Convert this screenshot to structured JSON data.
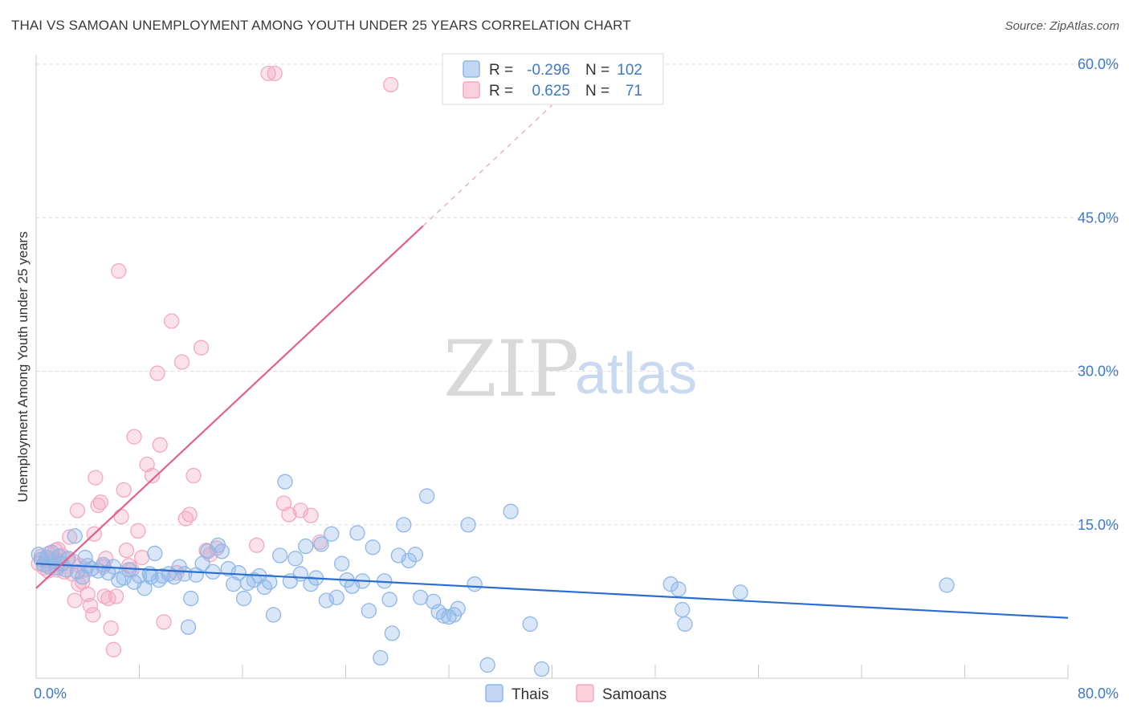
{
  "title": "THAI VS SAMOAN UNEMPLOYMENT AMONG YOUTH UNDER 25 YEARS CORRELATION CHART",
  "source": "Source: ZipAtlas.com",
  "watermark": {
    "zip": "ZIP",
    "atlas": "atlas"
  },
  "colors": {
    "thai": "#8fb7e8",
    "thai_line": "#2a6fcf",
    "samoan": "#f3a8c0",
    "samoan_line": "#e06090",
    "axis_text": "#3f78c8",
    "grid": "#dcdcdc"
  },
  "legend": {
    "rows": [
      {
        "r_label": "R =",
        "r_value": "-0.296",
        "n_label": "N =",
        "n_value": "102"
      },
      {
        "r_label": "R =",
        "r_value": "0.625",
        "n_label": "N =",
        "n_value": "71"
      }
    ]
  },
  "chart_data": {
    "type": "scatter",
    "title": "THAI VS SAMOAN UNEMPLOYMENT AMONG YOUTH UNDER 25 YEARS CORRELATION CHART",
    "xlabel": "",
    "ylabel": "Unemployment Among Youth under 25 years",
    "xlim": [
      0,
      80
    ],
    "ylim": [
      0,
      60
    ],
    "x_tick_labels": [
      "0.0%",
      "80.0%"
    ],
    "y_ticks": [
      15,
      30,
      45,
      60
    ],
    "y_tick_labels": [
      "15.0%",
      "30.0%",
      "45.0%",
      "60.0%"
    ],
    "series": [
      {
        "name": "Thais",
        "R": -0.296,
        "N": 102,
        "trend": {
          "x0": 0,
          "y0": 11.2,
          "x1": 80,
          "y1": 5.9
        },
        "points": [
          [
            0.2,
            12.1
          ],
          [
            0.4,
            11.6
          ],
          [
            0.6,
            11.1
          ],
          [
            0.8,
            11.8
          ],
          [
            1.0,
            10.9
          ],
          [
            1.2,
            12.3
          ],
          [
            1.4,
            11.4
          ],
          [
            1.6,
            10.8
          ],
          [
            1.8,
            11.9
          ],
          [
            2.0,
            11.2
          ],
          [
            2.3,
            10.6
          ],
          [
            2.5,
            11.7
          ],
          [
            3.0,
            13.9
          ],
          [
            3.2,
            10.4
          ],
          [
            3.6,
            9.9
          ],
          [
            4.0,
            11.0
          ],
          [
            4.3,
            10.7
          ],
          [
            4.8,
            10.5
          ],
          [
            5.2,
            11.1
          ],
          [
            5.6,
            10.3
          ],
          [
            6.0,
            10.9
          ],
          [
            6.4,
            9.6
          ],
          [
            6.8,
            9.8
          ],
          [
            7.2,
            10.6
          ],
          [
            7.6,
            9.4
          ],
          [
            8.0,
            10.0
          ],
          [
            8.4,
            8.8
          ],
          [
            8.8,
            10.2
          ],
          [
            9.2,
            12.2
          ],
          [
            9.5,
            9.6
          ],
          [
            9.8,
            10.0
          ],
          [
            10.3,
            10.2
          ],
          [
            10.7,
            9.9
          ],
          [
            11.1,
            10.9
          ],
          [
            11.5,
            10.2
          ],
          [
            11.8,
            5.0
          ],
          [
            12.0,
            7.8
          ],
          [
            12.4,
            10.1
          ],
          [
            12.9,
            11.2
          ],
          [
            13.3,
            12.4
          ],
          [
            13.7,
            10.4
          ],
          [
            14.1,
            13.0
          ],
          [
            14.4,
            12.4
          ],
          [
            14.9,
            10.7
          ],
          [
            15.3,
            9.2
          ],
          [
            15.7,
            10.3
          ],
          [
            16.1,
            7.8
          ],
          [
            16.4,
            9.3
          ],
          [
            16.9,
            9.6
          ],
          [
            17.3,
            10.0
          ],
          [
            17.7,
            8.9
          ],
          [
            18.1,
            9.4
          ],
          [
            18.4,
            6.2
          ],
          [
            18.9,
            12.0
          ],
          [
            19.3,
            19.2
          ],
          [
            19.7,
            9.5
          ],
          [
            20.1,
            11.7
          ],
          [
            20.5,
            10.2
          ],
          [
            20.9,
            12.9
          ],
          [
            21.3,
            9.2
          ],
          [
            21.7,
            9.8
          ],
          [
            22.1,
            13.1
          ],
          [
            22.5,
            7.6
          ],
          [
            22.9,
            14.1
          ],
          [
            23.3,
            7.9
          ],
          [
            23.7,
            11.2
          ],
          [
            24.1,
            9.6
          ],
          [
            24.5,
            9.0
          ],
          [
            24.9,
            14.2
          ],
          [
            25.3,
            9.5
          ],
          [
            25.8,
            6.6
          ],
          [
            26.1,
            12.8
          ],
          [
            26.7,
            2.0
          ],
          [
            27.0,
            9.5
          ],
          [
            27.4,
            7.7
          ],
          [
            27.6,
            4.4
          ],
          [
            28.1,
            12.0
          ],
          [
            28.5,
            15.0
          ],
          [
            28.9,
            11.5
          ],
          [
            29.4,
            12.1
          ],
          [
            29.8,
            7.9
          ],
          [
            30.3,
            17.8
          ],
          [
            30.8,
            7.5
          ],
          [
            31.2,
            6.5
          ],
          [
            31.6,
            6.1
          ],
          [
            32.0,
            6.0
          ],
          [
            32.4,
            6.2
          ],
          [
            32.7,
            6.8
          ],
          [
            33.5,
            15.0
          ],
          [
            34.0,
            9.2
          ],
          [
            35.0,
            1.3
          ],
          [
            36.8,
            16.3
          ],
          [
            38.3,
            5.3
          ],
          [
            39.2,
            0.9
          ],
          [
            49.2,
            9.2
          ],
          [
            49.8,
            8.7
          ],
          [
            50.1,
            6.7
          ],
          [
            50.3,
            5.3
          ],
          [
            54.6,
            8.4
          ],
          [
            70.6,
            9.1
          ],
          [
            8.9,
            9.9
          ],
          [
            3.8,
            11.8
          ]
        ]
      },
      {
        "name": "Samoans",
        "R": 0.625,
        "N": 71,
        "trend": {
          "x0": 0,
          "y0": 8.8,
          "x1": 30,
          "y1": 44.2
        },
        "trend_dashed": {
          "x0": 30,
          "y0": 44.2,
          "x1": 40,
          "y1": 56.0
        },
        "points": [
          [
            0.2,
            11.2
          ],
          [
            0.4,
            11.9
          ],
          [
            0.6,
            10.8
          ],
          [
            0.8,
            11.5
          ],
          [
            1.0,
            12.2
          ],
          [
            1.2,
            11.0
          ],
          [
            1.4,
            11.7
          ],
          [
            1.6,
            10.6
          ],
          [
            1.8,
            11.3
          ],
          [
            2.0,
            12.0
          ],
          [
            2.2,
            10.4
          ],
          [
            2.4,
            11.6
          ],
          [
            2.6,
            13.8
          ],
          [
            2.8,
            10.2
          ],
          [
            3.0,
            7.6
          ],
          [
            3.2,
            16.4
          ],
          [
            3.4,
            11.0
          ],
          [
            3.6,
            9.4
          ],
          [
            3.8,
            10.6
          ],
          [
            4.0,
            8.2
          ],
          [
            4.2,
            7.1
          ],
          [
            4.4,
            6.2
          ],
          [
            4.6,
            19.6
          ],
          [
            4.8,
            16.9
          ],
          [
            5.0,
            17.2
          ],
          [
            5.2,
            10.9
          ],
          [
            5.4,
            11.7
          ],
          [
            5.6,
            7.8
          ],
          [
            5.8,
            4.9
          ],
          [
            6.0,
            2.8
          ],
          [
            6.2,
            8.0
          ],
          [
            6.4,
            39.8
          ],
          [
            6.6,
            15.8
          ],
          [
            6.8,
            18.4
          ],
          [
            7.0,
            12.5
          ],
          [
            7.2,
            11.0
          ],
          [
            7.6,
            23.6
          ],
          [
            7.9,
            14.4
          ],
          [
            8.2,
            11.8
          ],
          [
            8.6,
            20.9
          ],
          [
            9.0,
            19.8
          ],
          [
            9.4,
            29.8
          ],
          [
            9.6,
            22.8
          ],
          [
            9.9,
            5.5
          ],
          [
            10.5,
            34.9
          ],
          [
            10.9,
            10.3
          ],
          [
            11.3,
            30.9
          ],
          [
            11.6,
            15.6
          ],
          [
            11.9,
            16.0
          ],
          [
            12.2,
            19.8
          ],
          [
            12.8,
            32.3
          ],
          [
            13.2,
            12.5
          ],
          [
            13.5,
            12.1
          ],
          [
            14.0,
            12.7
          ],
          [
            17.1,
            13.0
          ],
          [
            18.0,
            59.1
          ],
          [
            18.5,
            59.1
          ],
          [
            19.2,
            17.1
          ],
          [
            19.6,
            16.0
          ],
          [
            20.5,
            16.4
          ],
          [
            21.3,
            15.9
          ],
          [
            22.0,
            13.3
          ],
          [
            27.5,
            58.0
          ],
          [
            1.5,
            12.5
          ],
          [
            2.9,
            11.4
          ],
          [
            0.9,
            10.5
          ],
          [
            1.7,
            12.6
          ],
          [
            3.3,
            9.2
          ],
          [
            4.5,
            14.1
          ],
          [
            5.3,
            8.0
          ],
          [
            7.4,
            10.6
          ]
        ]
      }
    ]
  },
  "bottom_legend": {
    "items": [
      "Thais",
      "Samoans"
    ]
  }
}
